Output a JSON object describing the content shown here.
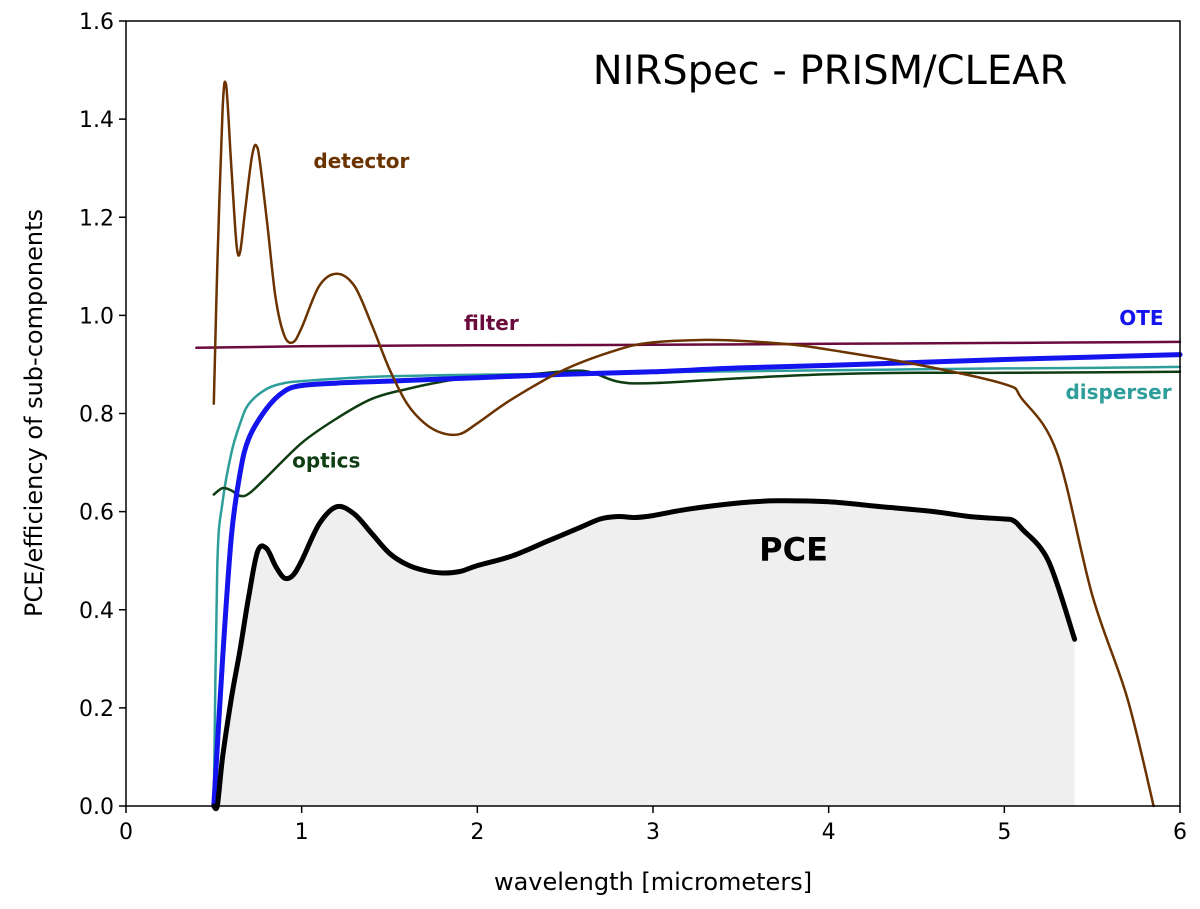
{
  "chart_data": {
    "type": "line",
    "title": "NIRSpec - PRISM/CLEAR",
    "xlabel": "wavelength [micrometers]",
    "ylabel": "PCE/efficiency of sub-components",
    "xlim": [
      0,
      6
    ],
    "ylim": [
      0,
      1.6
    ],
    "xticks": [
      0,
      1,
      2,
      3,
      4,
      5,
      6
    ],
    "xtick_labels": [
      "0",
      "1",
      "2",
      "3",
      "4",
      "5",
      "6"
    ],
    "yticks": [
      0.0,
      0.2,
      0.4,
      0.6,
      0.8,
      1.0,
      1.2,
      1.4,
      1.6
    ],
    "ytick_labels": [
      "0.0",
      "0.2",
      "0.4",
      "0.6",
      "0.8",
      "1.0",
      "1.2",
      "1.4",
      "1.6"
    ],
    "grid": false,
    "series": [
      {
        "name": "filter",
        "color": "#6b0a3c",
        "width": 2.5,
        "x": [
          0.4,
          1.0,
          2.0,
          3.0,
          4.0,
          5.0,
          6.0
        ],
        "y": [
          0.934,
          0.937,
          0.939,
          0.94,
          0.942,
          0.944,
          0.946
        ]
      },
      {
        "name": "disperser",
        "color": "#2e9e9a",
        "width": 2.5,
        "x": [
          0.5,
          0.52,
          0.55,
          0.6,
          0.65,
          0.7,
          0.8,
          0.9,
          1.0,
          1.2,
          1.5,
          2.0,
          2.5,
          3.0,
          3.5,
          4.0,
          4.5,
          5.0,
          5.5,
          6.0
        ],
        "y": [
          0.0,
          0.49,
          0.62,
          0.72,
          0.78,
          0.82,
          0.85,
          0.862,
          0.866,
          0.871,
          0.876,
          0.879,
          0.881,
          0.884,
          0.886,
          0.888,
          0.89,
          0.892,
          0.893,
          0.895
        ]
      },
      {
        "name": "optics",
        "color": "#0f3d12",
        "width": 2.5,
        "x": [
          0.5,
          0.55,
          0.6,
          0.65,
          0.7,
          0.8,
          1.0,
          1.2,
          1.4,
          1.6,
          1.8,
          2.0,
          2.3,
          2.6,
          2.8,
          3.0,
          3.5,
          4.0,
          4.5,
          5.0,
          6.0
        ],
        "y": [
          0.635,
          0.648,
          0.643,
          0.632,
          0.637,
          0.67,
          0.74,
          0.79,
          0.83,
          0.85,
          0.865,
          0.875,
          0.88,
          0.887,
          0.865,
          0.862,
          0.872,
          0.88,
          0.883,
          0.883,
          0.885
        ]
      },
      {
        "name": "OTE",
        "color": "#1414ee",
        "width": 5,
        "x": [
          0.5,
          0.55,
          0.6,
          0.65,
          0.7,
          0.8,
          0.9,
          1.0,
          1.2,
          1.5,
          2.0,
          2.5,
          3.0,
          3.5,
          4.0,
          4.5,
          5.0,
          5.5,
          6.0
        ],
        "y": [
          0.0,
          0.3,
          0.55,
          0.68,
          0.75,
          0.81,
          0.845,
          0.857,
          0.862,
          0.866,
          0.873,
          0.88,
          0.885,
          0.893,
          0.898,
          0.904,
          0.91,
          0.915,
          0.92
        ]
      },
      {
        "name": "detector",
        "color": "#6b3300",
        "width": 2.5,
        "x": [
          0.5,
          0.52,
          0.55,
          0.57,
          0.6,
          0.63,
          0.65,
          0.68,
          0.72,
          0.75,
          0.8,
          0.85,
          0.9,
          0.95,
          1.0,
          1.1,
          1.2,
          1.3,
          1.4,
          1.5,
          1.6,
          1.7,
          1.8,
          1.9,
          2.0,
          2.2,
          2.5,
          2.8,
          3.0,
          3.3,
          3.5,
          3.8,
          4.0,
          4.5,
          5.0,
          5.1,
          5.3,
          5.5,
          5.7,
          5.85
        ],
        "y": [
          0.82,
          1.1,
          1.42,
          1.47,
          1.3,
          1.14,
          1.13,
          1.22,
          1.33,
          1.34,
          1.2,
          1.04,
          0.96,
          0.945,
          0.975,
          1.06,
          1.085,
          1.06,
          0.98,
          0.89,
          0.82,
          0.78,
          0.76,
          0.758,
          0.78,
          0.83,
          0.89,
          0.93,
          0.945,
          0.95,
          0.948,
          0.94,
          0.93,
          0.9,
          0.86,
          0.83,
          0.72,
          0.43,
          0.22,
          0.0
        ]
      },
      {
        "name": "PCE",
        "color": "#000000",
        "width": 5,
        "fill": "#efefef",
        "x": [
          0.5,
          0.52,
          0.55,
          0.6,
          0.65,
          0.7,
          0.75,
          0.8,
          0.85,
          0.9,
          0.95,
          1.0,
          1.1,
          1.2,
          1.3,
          1.4,
          1.5,
          1.6,
          1.7,
          1.8,
          1.9,
          2.0,
          2.2,
          2.4,
          2.6,
          2.7,
          2.8,
          2.9,
          3.0,
          3.2,
          3.5,
          3.7,
          4.0,
          4.3,
          4.6,
          4.8,
          5.0,
          5.05,
          5.1,
          5.25,
          5.4
        ],
        "y": [
          0.0,
          0.0,
          0.1,
          0.22,
          0.32,
          0.43,
          0.52,
          0.525,
          0.49,
          0.465,
          0.47,
          0.5,
          0.575,
          0.61,
          0.595,
          0.555,
          0.515,
          0.492,
          0.48,
          0.475,
          0.478,
          0.49,
          0.51,
          0.54,
          0.57,
          0.585,
          0.59,
          0.588,
          0.592,
          0.605,
          0.618,
          0.622,
          0.62,
          0.61,
          0.6,
          0.59,
          0.585,
          0.582,
          0.565,
          0.5,
          0.34
        ]
      }
    ],
    "annotations": [
      {
        "text": "detector",
        "x": 1.34,
        "y": 1.3,
        "color": "#6b3300",
        "style": "series"
      },
      {
        "text": "filter",
        "x": 2.08,
        "y": 0.97,
        "color": "#6b0a3c",
        "style": "series"
      },
      {
        "text": "OTE",
        "x": 5.78,
        "y": 0.98,
        "color": "#1414ee",
        "style": "series"
      },
      {
        "text": "disperser",
        "x": 5.65,
        "y": 0.83,
        "color": "#2e9e9a",
        "style": "series"
      },
      {
        "text": "optics",
        "x": 1.14,
        "y": 0.69,
        "color": "#0f3d12",
        "style": "series"
      },
      {
        "text": "PCE",
        "x": 3.8,
        "y": 0.5,
        "color": "#000000",
        "style": "big"
      }
    ]
  }
}
